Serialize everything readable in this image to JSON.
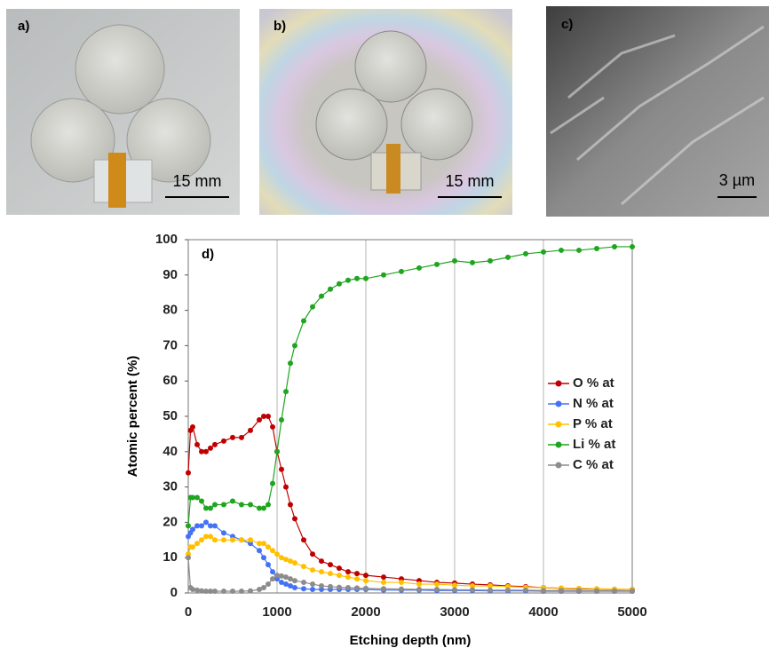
{
  "images": [
    {
      "label": "a)",
      "scale": "15 mm"
    },
    {
      "label": "b)",
      "scale": "15 mm"
    },
    {
      "label": "c)",
      "scale": "3 µm"
    }
  ],
  "chart_data": {
    "type": "line",
    "annotation": "d)",
    "x_label": "Etching depth (nm)",
    "y_label": "Atomic percent (%)",
    "x": [
      0,
      25,
      50,
      100,
      150,
      200,
      250,
      300,
      400,
      500,
      600,
      700,
      800,
      850,
      900,
      950,
      1000,
      1050,
      1100,
      1150,
      1200,
      1300,
      1400,
      1500,
      1600,
      1700,
      1800,
      1900,
      2000,
      2200,
      2400,
      2600,
      2800,
      3000,
      3200,
      3400,
      3600,
      3800,
      4000,
      4200,
      4400,
      4600,
      4800,
      5000
    ],
    "series": [
      {
        "name": "O % at",
        "color": "#c00000",
        "values": [
          34,
          46,
          47,
          42,
          40,
          40,
          41,
          42,
          43,
          44,
          44,
          46,
          49,
          50,
          50,
          47,
          40,
          35,
          30,
          25,
          21,
          15,
          11,
          9,
          8,
          7,
          6,
          5.5,
          5,
          4.5,
          4,
          3.5,
          3,
          2.8,
          2.5,
          2.3,
          2,
          1.8,
          1.5,
          1.3,
          1.2,
          1.1,
          1,
          1
        ]
      },
      {
        "name": "N % at",
        "color": "#4472f4",
        "values": [
          16,
          17,
          18,
          19,
          19,
          20,
          19,
          19,
          17,
          16,
          15,
          14,
          12,
          10,
          8,
          6,
          4,
          3,
          2.5,
          2,
          1.5,
          1.2,
          1,
          1,
          1,
          1,
          1,
          1,
          1,
          0.8,
          0.8,
          0.8,
          0.7,
          0.7,
          0.7,
          0.6,
          0.6,
          0.6,
          0.5,
          0.5,
          0.5,
          0.5,
          0.5,
          0.5
        ]
      },
      {
        "name": "P % at",
        "color": "#ffc000",
        "values": [
          11,
          13,
          13,
          14,
          15,
          16,
          16,
          15,
          15,
          15,
          15,
          15,
          14,
          14,
          13,
          12,
          11,
          10,
          9.5,
          9,
          8.5,
          7.5,
          6.5,
          6,
          5.5,
          5,
          4.5,
          4,
          3.5,
          3,
          3,
          2.5,
          2.5,
          2.2,
          2,
          2,
          1.8,
          1.6,
          1.5,
          1.4,
          1.3,
          1.2,
          1.1,
          1
        ]
      },
      {
        "name": "Li % at",
        "color": "#1fa51f",
        "values": [
          19,
          27,
          27,
          27,
          26,
          24,
          24,
          25,
          25,
          26,
          25,
          25,
          24,
          24,
          25,
          31,
          40,
          49,
          57,
          65,
          70,
          77,
          81,
          84,
          86,
          87.5,
          88.5,
          89,
          89,
          90,
          91,
          92,
          93,
          94,
          93.5,
          94,
          95,
          96,
          96.5,
          97,
          97,
          97.5,
          98,
          98
        ]
      },
      {
        "name": "C % at",
        "color": "#8c8c8c",
        "values": [
          10,
          1.5,
          1,
          0.8,
          0.6,
          0.5,
          0.5,
          0.5,
          0.5,
          0.5,
          0.5,
          0.6,
          1,
          1.5,
          2.5,
          4,
          5,
          4.8,
          4.5,
          4,
          3.5,
          3,
          2.5,
          2,
          1.8,
          1.6,
          1.5,
          1.4,
          1.3,
          1.2,
          1.1,
          1,
          1,
          0.9,
          0.9,
          0.8,
          0.8,
          0.8,
          0.7,
          0.7,
          0.7,
          0.6,
          0.6,
          0.6
        ]
      }
    ],
    "xlim": [
      0,
      5000
    ],
    "xticks": [
      0,
      1000,
      2000,
      3000,
      4000,
      5000
    ],
    "ylim": [
      0,
      100
    ],
    "yticks": [
      0,
      10,
      20,
      30,
      40,
      50,
      60,
      70,
      80,
      90,
      100
    ],
    "grid": "x",
    "legend": "right"
  }
}
